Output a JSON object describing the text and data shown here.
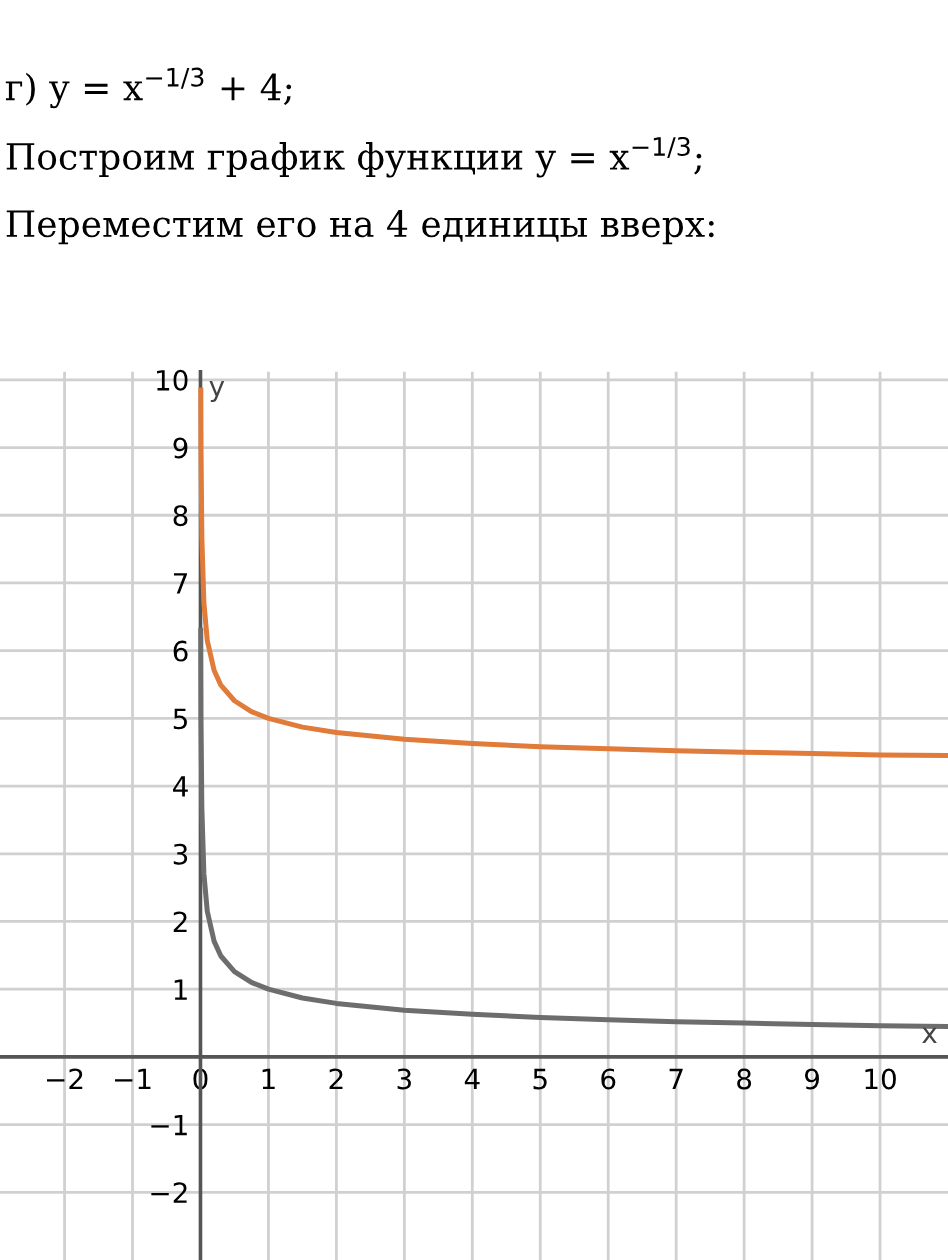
{
  "chart_data": {
    "type": "line",
    "annotations": [
      "г) y = x$^{−1/3}$ + 4;",
      "Построим график функции y = x$^{−1/3}$;",
      "Переместим его на 4 единицы вверх:"
    ],
    "xlabel": "x",
    "ylabel": "y",
    "series": [
      {
        "color": "#e07b39",
        "x": [
          0.005,
          0.008,
          0.02,
          0.05,
          0.1,
          0.2,
          0.3,
          0.5,
          0.75,
          1,
          1.5,
          2,
          3,
          4,
          5,
          6,
          7,
          8,
          9,
          10,
          11
        ],
        "values": [
          9.85,
          9.0,
          7.68,
          6.71,
          6.15,
          5.71,
          5.49,
          5.26,
          5.1,
          5.0,
          4.87,
          4.79,
          4.69,
          4.63,
          4.58,
          4.55,
          4.52,
          4.5,
          4.48,
          4.46,
          4.45
        ]
      },
      {
        "color": "#6d6d6d",
        "x": [
          0.004,
          0.008,
          0.02,
          0.05,
          0.1,
          0.2,
          0.3,
          0.5,
          0.75,
          1,
          1.5,
          2,
          3,
          4,
          5,
          6,
          7,
          8,
          9,
          10,
          11
        ],
        "values": [
          6.3,
          5.0,
          3.68,
          2.71,
          2.15,
          1.71,
          1.49,
          1.26,
          1.1,
          1.0,
          0.87,
          0.79,
          0.69,
          0.63,
          0.58,
          0.55,
          0.52,
          0.5,
          0.48,
          0.46,
          0.45
        ]
      }
    ],
    "xlim": [
      -2.95,
      11.0
    ],
    "ylim": [
      -3.0,
      10.12
    ],
    "xticks": [
      -2,
      -1,
      0,
      1,
      2,
      3,
      4,
      5,
      6,
      7,
      8,
      9,
      10
    ],
    "yticks": [
      -2,
      -1,
      {
        "value": 0,
        "label": null
      },
      1,
      2,
      3,
      4,
      5,
      6,
      7,
      8,
      9,
      10
    ],
    "grid": true,
    "marker": "none",
    "line_style": "solid"
  }
}
